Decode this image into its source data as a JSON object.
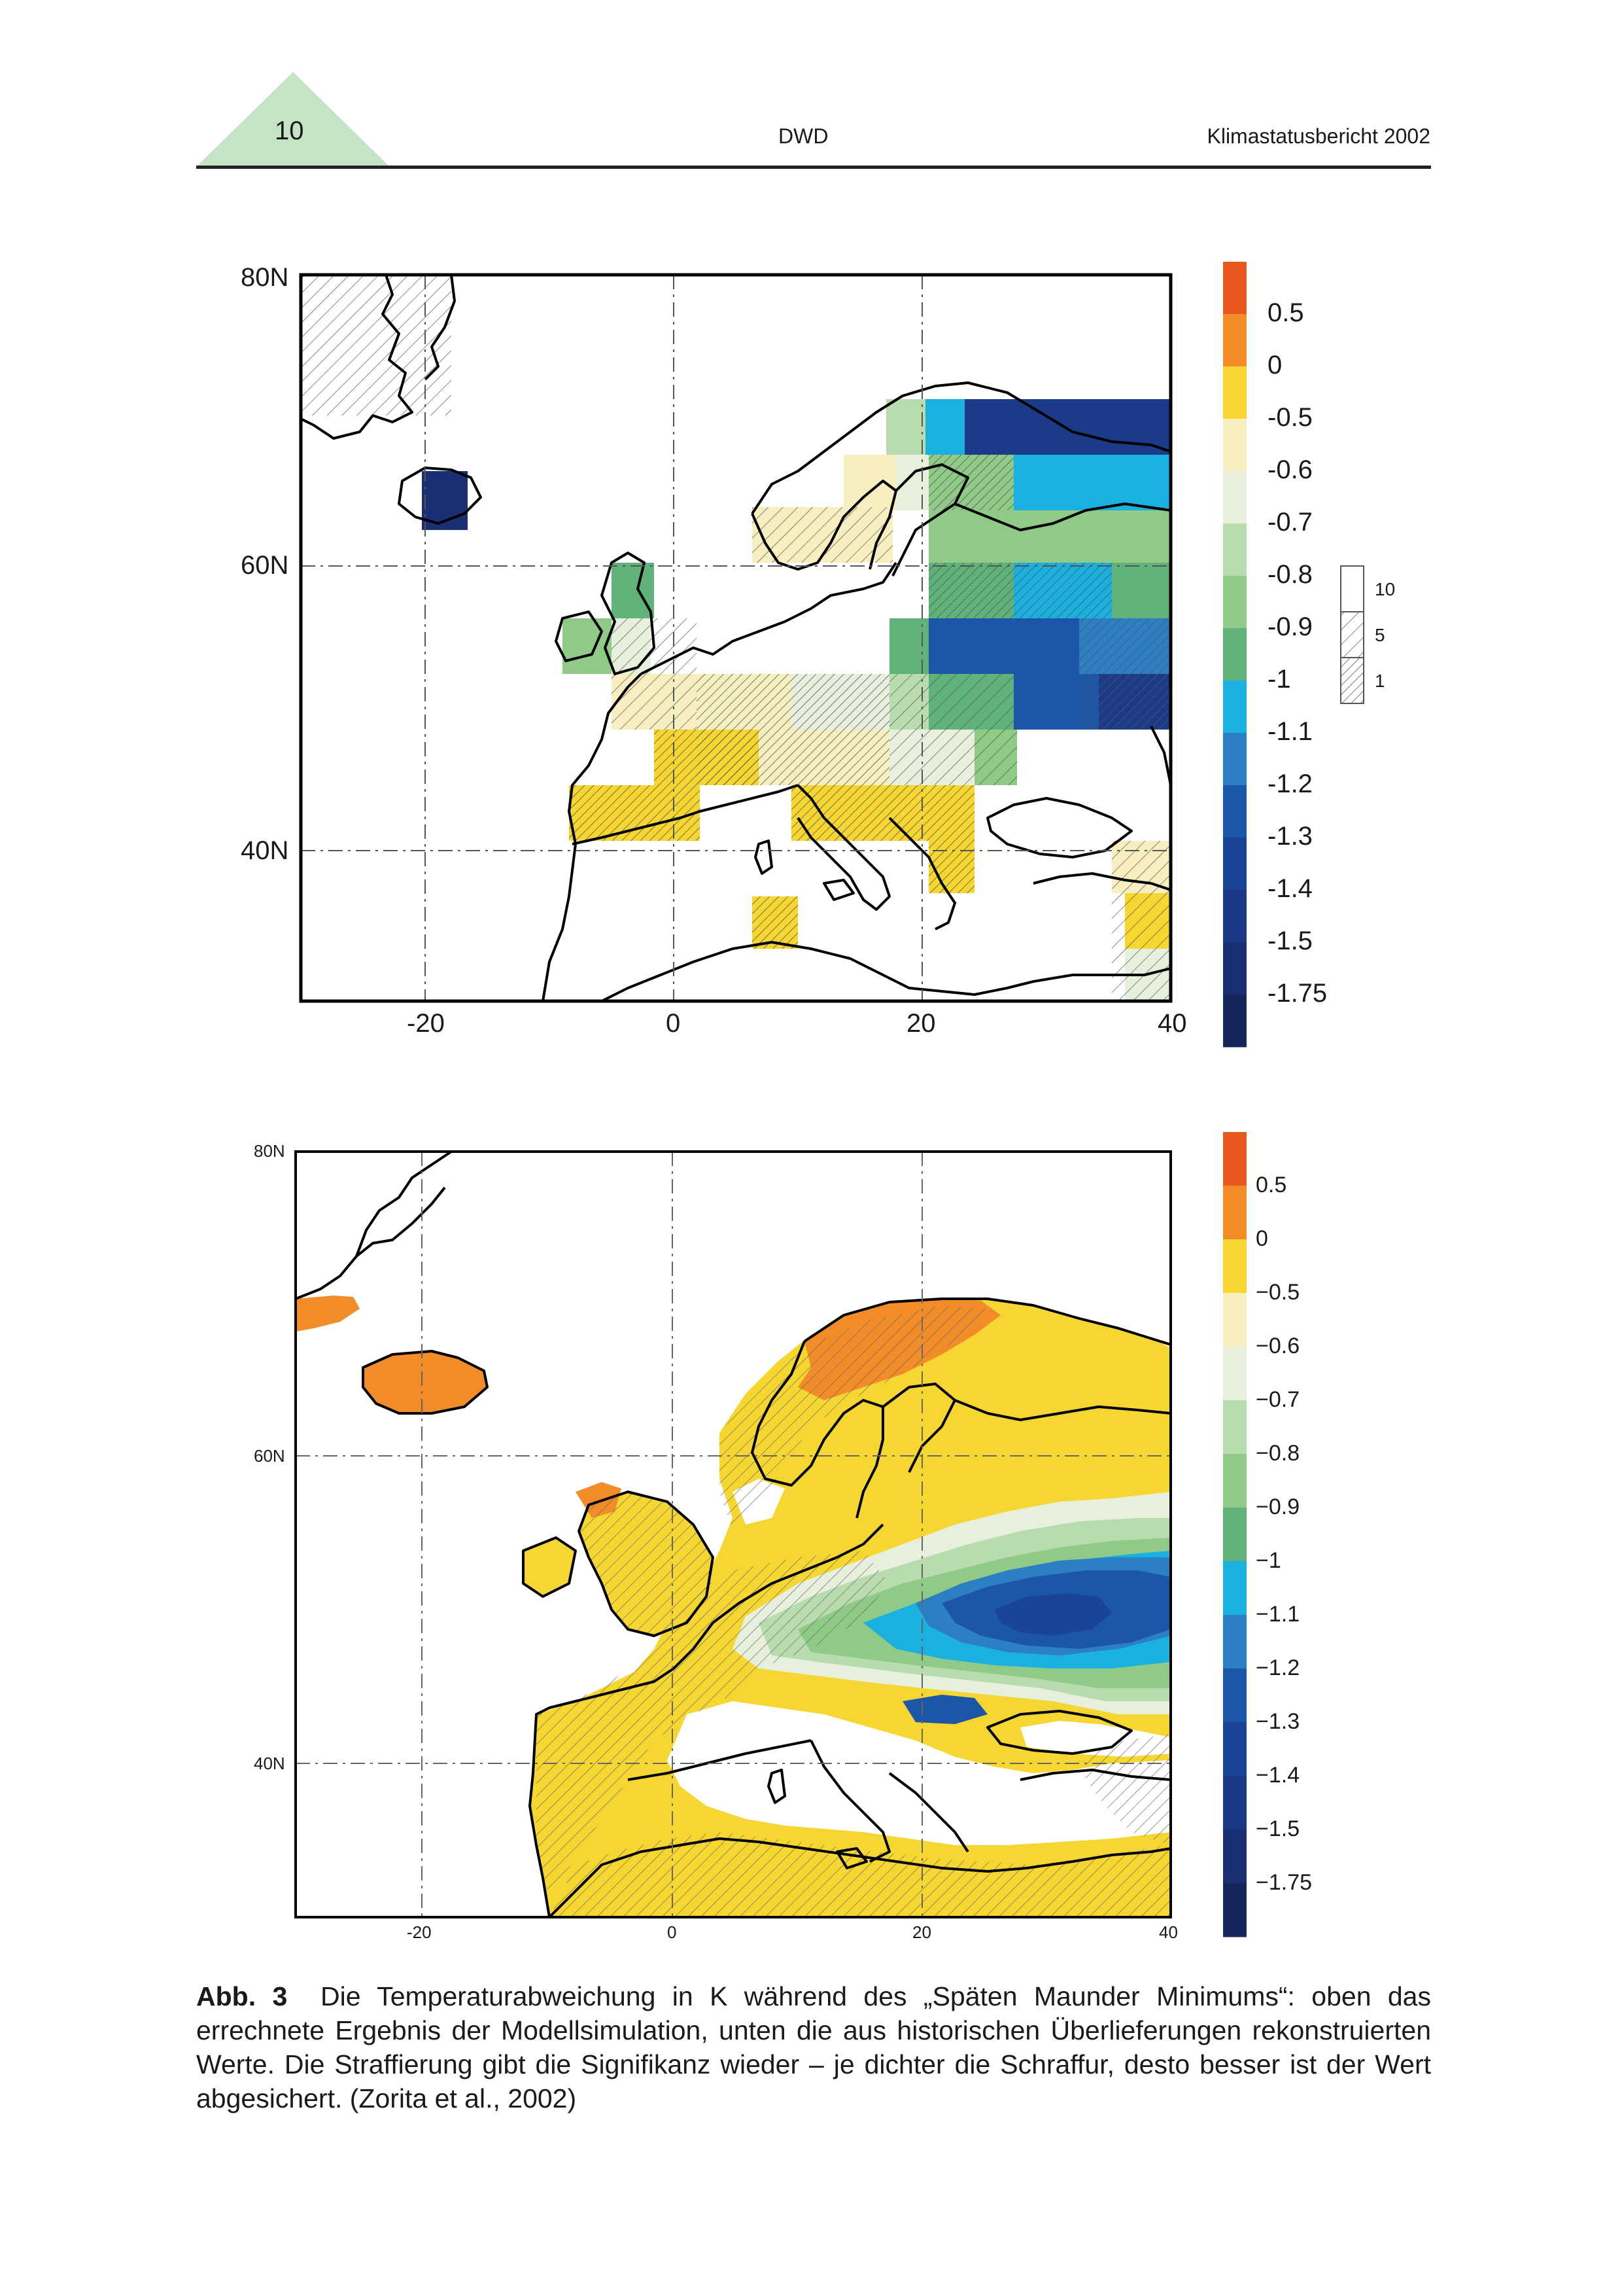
{
  "header": {
    "page_number": "10",
    "center": "DWD",
    "right": "Klimastatusbericht 2002",
    "accent_color": "#c5e3c5"
  },
  "maps": [
    {
      "id": "model",
      "lat_labels": [
        "80N",
        "60N",
        "40N"
      ],
      "lon_labels": [
        "-20",
        "0",
        "20",
        "40"
      ],
      "legend_labels": [
        "0.5",
        "0",
        "-0.5",
        "-0.6",
        "-0.7",
        "-0.8",
        "-0.9",
        "-1",
        "-1.1",
        "-1.2",
        "-1.3",
        "-1.4",
        "-1.5",
        "-1.75"
      ],
      "hatch_legend_labels": [
        "10",
        "5",
        "1"
      ]
    },
    {
      "id": "reconstruction",
      "lat_labels": [
        "80N",
        "60N",
        "40N"
      ],
      "lon_labels": [
        "-20",
        "0",
        "20",
        "40"
      ],
      "legend_labels": [
        "0.5",
        "0",
        "−0.5",
        "−0.6",
        "−0.7",
        "−0.8",
        "−0.9",
        "−1",
        "−1.1",
        "−1.2",
        "−1.3",
        "−1.4",
        "−1.5",
        "−1.75"
      ]
    }
  ],
  "colorscale": [
    "#e8591f",
    "#f28c28",
    "#f6d630",
    "#f7efbf",
    "#e6f0dd",
    "#b9dcaf",
    "#8fca86",
    "#5fb27a",
    "#1ab0e0",
    "#2d7fc3",
    "#1c56a8",
    "#1b4497",
    "#1a3a87",
    "#1b2f74",
    "#14265c"
  ],
  "caption": {
    "label": "Abb. 3",
    "text": "Die Temperaturabweichung in K während des „Späten Maunder Minimums“: oben das errechnete Ergebnis der Modellsimulation, unten die aus historischen Überlieferungen rekonstruierten Werte. Die Straffierung gibt die Signifikanz wieder – je dichter die Schraffur, desto besser ist der Wert abgesichert. (Zorita et al., 2002)"
  }
}
